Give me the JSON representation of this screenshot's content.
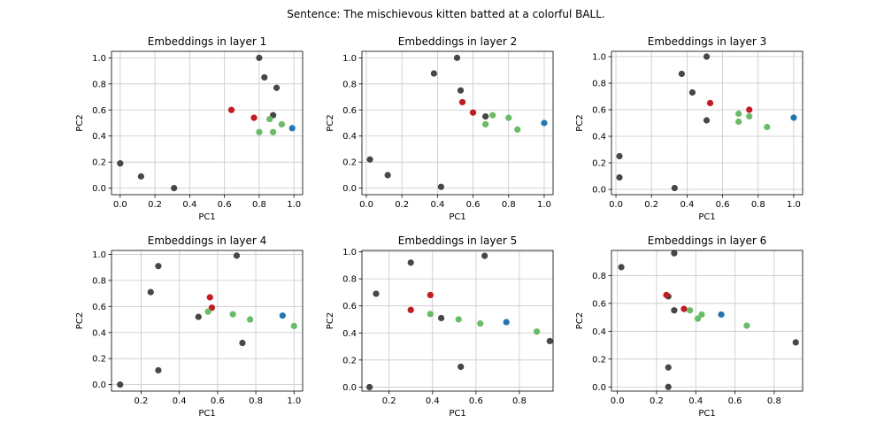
{
  "figure": {
    "suptitle": "Sentence: The mischievous kitten batted at a colorful BALL."
  },
  "colors": {
    "dark": "#474747",
    "red": "#c8191f",
    "green": "#66bd63",
    "blue": "#1f78b4",
    "grid": "#c8c8c8"
  },
  "chart_data": [
    {
      "type": "scatter",
      "title": "Embeddings in layer 1",
      "xlabel": "PC1",
      "ylabel": "PC2",
      "xlim": [
        -0.05,
        1.05
      ],
      "ylim": [
        -0.05,
        1.05
      ],
      "xticks": [
        0.0,
        0.2,
        0.4,
        0.6,
        0.8,
        1.0
      ],
      "xtick_labels": [
        "0.0",
        "0.2",
        "0.4",
        "0.6",
        "0.8",
        "1.0"
      ],
      "yticks": [
        0.0,
        0.2,
        0.4,
        0.6,
        0.8,
        1.0
      ],
      "ytick_labels": [
        "0.0",
        "0.2",
        "0.4",
        "0.6",
        "0.8",
        "1.0"
      ],
      "points": [
        {
          "x": 0.0,
          "y": 0.19,
          "c": "dark"
        },
        {
          "x": 0.12,
          "y": 0.09,
          "c": "dark"
        },
        {
          "x": 0.31,
          "y": 0.0,
          "c": "dark"
        },
        {
          "x": 0.8,
          "y": 1.0,
          "c": "dark"
        },
        {
          "x": 0.83,
          "y": 0.85,
          "c": "dark"
        },
        {
          "x": 0.9,
          "y": 0.77,
          "c": "dark"
        },
        {
          "x": 0.88,
          "y": 0.56,
          "c": "dark"
        },
        {
          "x": 0.64,
          "y": 0.6,
          "c": "red"
        },
        {
          "x": 0.77,
          "y": 0.54,
          "c": "red"
        },
        {
          "x": 0.8,
          "y": 0.43,
          "c": "green"
        },
        {
          "x": 0.86,
          "y": 0.53,
          "c": "green"
        },
        {
          "x": 0.88,
          "y": 0.43,
          "c": "green"
        },
        {
          "x": 0.93,
          "y": 0.49,
          "c": "green"
        },
        {
          "x": 0.99,
          "y": 0.46,
          "c": "blue"
        }
      ]
    },
    {
      "type": "scatter",
      "title": "Embeddings in layer 2",
      "xlabel": "PC1",
      "ylabel": "PC2",
      "xlim": [
        -0.025,
        1.05
      ],
      "ylim": [
        -0.05,
        1.05
      ],
      "xticks": [
        0.0,
        0.2,
        0.4,
        0.6,
        0.8,
        1.0
      ],
      "xtick_labels": [
        "0.0",
        "0.2",
        "0.4",
        "0.6",
        "0.8",
        "1.0"
      ],
      "yticks": [
        0.0,
        0.2,
        0.4,
        0.6,
        0.8,
        1.0
      ],
      "ytick_labels": [
        "0.0",
        "0.2",
        "0.4",
        "0.6",
        "0.8",
        "1.0"
      ],
      "points": [
        {
          "x": 0.02,
          "y": 0.22,
          "c": "dark"
        },
        {
          "x": 0.12,
          "y": 0.1,
          "c": "dark"
        },
        {
          "x": 0.42,
          "y": 0.01,
          "c": "dark"
        },
        {
          "x": 0.38,
          "y": 0.88,
          "c": "dark"
        },
        {
          "x": 0.51,
          "y": 1.0,
          "c": "dark"
        },
        {
          "x": 0.53,
          "y": 0.75,
          "c": "dark"
        },
        {
          "x": 0.67,
          "y": 0.55,
          "c": "dark"
        },
        {
          "x": 0.54,
          "y": 0.66,
          "c": "red"
        },
        {
          "x": 0.6,
          "y": 0.58,
          "c": "red"
        },
        {
          "x": 0.67,
          "y": 0.49,
          "c": "green"
        },
        {
          "x": 0.71,
          "y": 0.56,
          "c": "green"
        },
        {
          "x": 0.8,
          "y": 0.54,
          "c": "green"
        },
        {
          "x": 0.85,
          "y": 0.45,
          "c": "green"
        },
        {
          "x": 1.0,
          "y": 0.5,
          "c": "blue"
        }
      ]
    },
    {
      "type": "scatter",
      "title": "Embeddings in layer 3",
      "xlabel": "PC1",
      "ylabel": "PC2",
      "xlim": [
        -0.025,
        1.05
      ],
      "ylim": [
        -0.04,
        1.04
      ],
      "xticks": [
        0.0,
        0.2,
        0.4,
        0.6,
        0.8,
        1.0
      ],
      "xtick_labels": [
        "0.0",
        "0.2",
        "0.4",
        "0.6",
        "0.8",
        "1.0"
      ],
      "yticks": [
        0.0,
        0.2,
        0.4,
        0.6,
        0.8,
        1.0
      ],
      "ytick_labels": [
        "0.0",
        "0.2",
        "0.4",
        "0.6",
        "0.8",
        "1.0"
      ],
      "points": [
        {
          "x": 0.02,
          "y": 0.25,
          "c": "dark"
        },
        {
          "x": 0.02,
          "y": 0.09,
          "c": "dark"
        },
        {
          "x": 0.33,
          "y": 0.01,
          "c": "dark"
        },
        {
          "x": 0.37,
          "y": 0.87,
          "c": "dark"
        },
        {
          "x": 0.43,
          "y": 0.73,
          "c": "dark"
        },
        {
          "x": 0.51,
          "y": 1.0,
          "c": "dark"
        },
        {
          "x": 0.51,
          "y": 0.52,
          "c": "dark"
        },
        {
          "x": 0.53,
          "y": 0.65,
          "c": "red"
        },
        {
          "x": 0.75,
          "y": 0.6,
          "c": "red"
        },
        {
          "x": 0.69,
          "y": 0.57,
          "c": "green"
        },
        {
          "x": 0.69,
          "y": 0.51,
          "c": "green"
        },
        {
          "x": 0.75,
          "y": 0.55,
          "c": "green"
        },
        {
          "x": 0.85,
          "y": 0.47,
          "c": "green"
        },
        {
          "x": 1.0,
          "y": 0.54,
          "c": "blue"
        }
      ]
    },
    {
      "type": "scatter",
      "title": "Embeddings in layer 4",
      "xlabel": "PC1",
      "ylabel": "PC2",
      "xlim": [
        0.045,
        1.045
      ],
      "ylim": [
        -0.05,
        1.03
      ],
      "xticks": [
        0.2,
        0.4,
        0.6,
        0.8,
        1.0
      ],
      "xtick_labels": [
        "0.2",
        "0.4",
        "0.6",
        "0.8",
        "1.0"
      ],
      "yticks": [
        0.0,
        0.2,
        0.4,
        0.6,
        0.8,
        1.0
      ],
      "ytick_labels": [
        "0.0",
        "0.2",
        "0.4",
        "0.6",
        "0.8",
        "1.0"
      ],
      "points": [
        {
          "x": 0.09,
          "y": 0.0,
          "c": "dark"
        },
        {
          "x": 0.25,
          "y": 0.71,
          "c": "dark"
        },
        {
          "x": 0.29,
          "y": 0.91,
          "c": "dark"
        },
        {
          "x": 0.29,
          "y": 0.11,
          "c": "dark"
        },
        {
          "x": 0.5,
          "y": 0.52,
          "c": "dark"
        },
        {
          "x": 0.7,
          "y": 0.99,
          "c": "dark"
        },
        {
          "x": 0.73,
          "y": 0.32,
          "c": "dark"
        },
        {
          "x": 0.56,
          "y": 0.67,
          "c": "red"
        },
        {
          "x": 0.57,
          "y": 0.59,
          "c": "red"
        },
        {
          "x": 0.55,
          "y": 0.56,
          "c": "green"
        },
        {
          "x": 0.68,
          "y": 0.54,
          "c": "green"
        },
        {
          "x": 0.77,
          "y": 0.5,
          "c": "green"
        },
        {
          "x": 1.0,
          "y": 0.45,
          "c": "green"
        },
        {
          "x": 0.94,
          "y": 0.53,
          "c": "blue"
        }
      ]
    },
    {
      "type": "scatter",
      "title": "Embeddings in layer 5",
      "xlabel": "PC1",
      "ylabel": "PC2",
      "xlim": [
        0.075,
        0.955
      ],
      "ylim": [
        -0.03,
        1.01
      ],
      "xticks": [
        0.2,
        0.4,
        0.6,
        0.8
      ],
      "xtick_labels": [
        "0.2",
        "0.4",
        "0.6",
        "0.8"
      ],
      "yticks": [
        0.0,
        0.2,
        0.4,
        0.6,
        0.8,
        1.0
      ],
      "ytick_labels": [
        "0.0",
        "0.2",
        "0.4",
        "0.6",
        "0.8",
        "1.0"
      ],
      "points": [
        {
          "x": 0.11,
          "y": 0.0,
          "c": "dark"
        },
        {
          "x": 0.14,
          "y": 0.69,
          "c": "dark"
        },
        {
          "x": 0.3,
          "y": 0.92,
          "c": "dark"
        },
        {
          "x": 0.44,
          "y": 0.51,
          "c": "dark"
        },
        {
          "x": 0.53,
          "y": 0.15,
          "c": "dark"
        },
        {
          "x": 0.64,
          "y": 0.97,
          "c": "dark"
        },
        {
          "x": 0.94,
          "y": 0.34,
          "c": "dark"
        },
        {
          "x": 0.3,
          "y": 0.57,
          "c": "red"
        },
        {
          "x": 0.39,
          "y": 0.68,
          "c": "red"
        },
        {
          "x": 0.39,
          "y": 0.54,
          "c": "green"
        },
        {
          "x": 0.52,
          "y": 0.5,
          "c": "green"
        },
        {
          "x": 0.62,
          "y": 0.47,
          "c": "green"
        },
        {
          "x": 0.88,
          "y": 0.41,
          "c": "green"
        },
        {
          "x": 0.74,
          "y": 0.48,
          "c": "blue"
        }
      ]
    },
    {
      "type": "scatter",
      "title": "Embeddings in layer 6",
      "xlabel": "PC1",
      "ylabel": "PC2",
      "xlim": [
        -0.03,
        0.945
      ],
      "ylim": [
        -0.03,
        0.98
      ],
      "xticks": [
        0.0,
        0.2,
        0.4,
        0.6,
        0.8
      ],
      "xtick_labels": [
        "0.0",
        "0.2",
        "0.4",
        "0.6",
        "0.8"
      ],
      "yticks": [
        0.0,
        0.2,
        0.4,
        0.6,
        0.8
      ],
      "ytick_labels": [
        "0.0",
        "0.2",
        "0.4",
        "0.6",
        "0.8"
      ],
      "points": [
        {
          "x": 0.02,
          "y": 0.86,
          "c": "dark"
        },
        {
          "x": 0.29,
          "y": 0.96,
          "c": "dark"
        },
        {
          "x": 0.29,
          "y": 0.55,
          "c": "dark"
        },
        {
          "x": 0.26,
          "y": 0.14,
          "c": "dark"
        },
        {
          "x": 0.26,
          "y": 0.0,
          "c": "dark"
        },
        {
          "x": 0.91,
          "y": 0.32,
          "c": "dark"
        },
        {
          "x": 0.26,
          "y": 0.65,
          "c": "dark"
        },
        {
          "x": 0.25,
          "y": 0.66,
          "c": "red"
        },
        {
          "x": 0.34,
          "y": 0.56,
          "c": "red"
        },
        {
          "x": 0.37,
          "y": 0.55,
          "c": "green"
        },
        {
          "x": 0.41,
          "y": 0.49,
          "c": "green"
        },
        {
          "x": 0.43,
          "y": 0.52,
          "c": "green"
        },
        {
          "x": 0.66,
          "y": 0.44,
          "c": "green"
        },
        {
          "x": 0.53,
          "y": 0.52,
          "c": "blue"
        }
      ]
    }
  ]
}
